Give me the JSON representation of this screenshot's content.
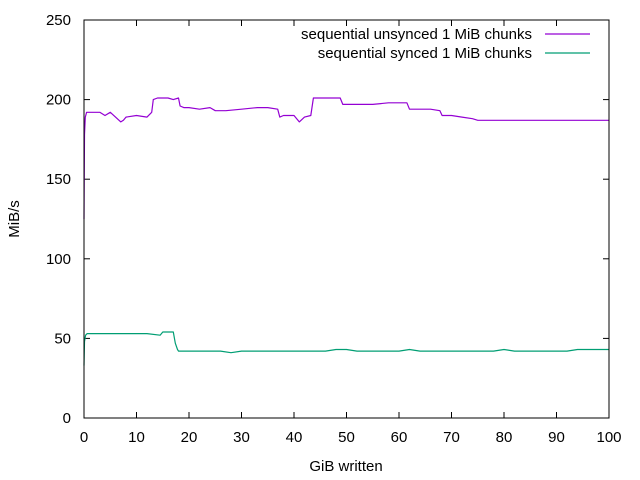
{
  "chart_data": {
    "type": "line",
    "xlabel": "GiB written",
    "ylabel": "MiB/s",
    "xlim": [
      0,
      100
    ],
    "ylim": [
      0,
      250
    ],
    "xticks": [
      0,
      10,
      20,
      30,
      40,
      50,
      60,
      70,
      80,
      90,
      100
    ],
    "yticks": [
      0,
      50,
      100,
      150,
      200,
      250
    ],
    "grid": false,
    "legend_position": "top-right",
    "colors": {
      "unsynced": "#9400d3",
      "synced": "#009e73"
    },
    "series": [
      {
        "name": "sequential unsynced 1 MiB chunks",
        "color": "#9400d3",
        "x": [
          0,
          0.1,
          0.25,
          0.5,
          1,
          3,
          4,
          5,
          6,
          7,
          7.5,
          8,
          10,
          12,
          12.9,
          13.2,
          14,
          15,
          16,
          17,
          18,
          18.3,
          19,
          20,
          22,
          24,
          25,
          27,
          30,
          33,
          35,
          36.9,
          37.3,
          38,
          40,
          41,
          42,
          43.2,
          43.7,
          45,
          47,
          48.8,
          49.3,
          52,
          55,
          58,
          60,
          61.5,
          62,
          64,
          66,
          67.8,
          68.2,
          70,
          72,
          74,
          75,
          80,
          85,
          90,
          95,
          100
        ],
        "y": [
          125,
          178,
          189,
          192,
          192,
          192,
          190,
          192,
          189,
          186,
          187,
          189,
          190,
          189,
          192,
          200,
          201,
          201,
          201,
          200,
          201,
          196,
          195,
          195,
          194,
          195,
          193,
          193,
          194,
          195,
          195,
          194,
          189,
          190,
          190,
          186,
          189,
          190,
          201,
          201,
          201,
          201,
          197,
          197,
          197,
          198,
          198,
          198,
          194,
          194,
          194,
          193,
          190,
          190,
          189,
          188,
          187,
          187,
          187,
          187,
          187,
          187
        ]
      },
      {
        "name": "sequential synced 1 MiB chunks",
        "color": "#009e73",
        "x": [
          0,
          0.1,
          0.3,
          0.6,
          2,
          5,
          8,
          10,
          12,
          14.5,
          15,
          17,
          17.4,
          17.8,
          18,
          20,
          22,
          24,
          26,
          28,
          30,
          32,
          34,
          36,
          38,
          40,
          42,
          44,
          46,
          48,
          50,
          52,
          54,
          56,
          58,
          60,
          62,
          64,
          66,
          68,
          70,
          72,
          74,
          76,
          78,
          80,
          82,
          84,
          86,
          88,
          90,
          92,
          94,
          96,
          98,
          100
        ],
        "y": [
          33,
          48,
          52,
          53,
          53,
          53,
          53,
          53,
          53,
          52,
          54,
          54,
          47,
          43,
          42,
          42,
          42,
          42,
          42,
          41,
          42,
          42,
          42,
          42,
          42,
          42,
          42,
          42,
          42,
          43,
          43,
          42,
          42,
          42,
          42,
          42,
          43,
          42,
          42,
          42,
          42,
          42,
          42,
          42,
          42,
          43,
          42,
          42,
          42,
          42,
          42,
          42,
          43,
          43,
          43,
          43
        ]
      }
    ]
  }
}
